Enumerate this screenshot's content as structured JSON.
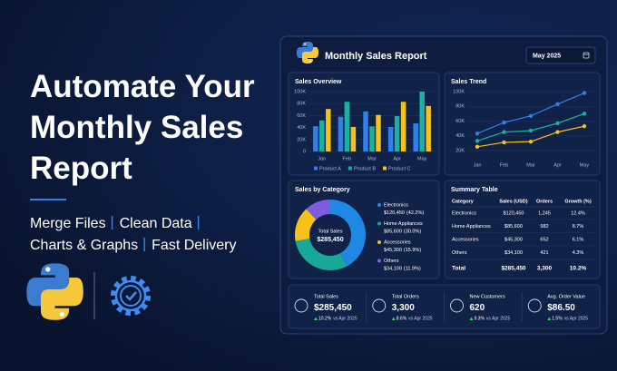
{
  "headline": {
    "lines": [
      "Automate Your",
      "Monthly Sales",
      "Report"
    ]
  },
  "features": [
    "Merge Files",
    "Clean Data",
    "Charts & Graphs",
    "Fast Delivery"
  ],
  "dashboard": {
    "title": "Monthly Sales Report",
    "period": "May 2025",
    "sales_overview": {
      "type": "bar",
      "title": "Sales Overview",
      "categories": [
        "Jan",
        "Feb",
        "Mar",
        "Apr",
        "May"
      ],
      "series": [
        {
          "name": "Product A",
          "color": "#2f80ed",
          "values": [
            42000,
            58000,
            67000,
            41000,
            47000
          ]
        },
        {
          "name": "Product B",
          "color": "#17b3a0",
          "values": [
            52000,
            83000,
            42000,
            59000,
            100000
          ]
        },
        {
          "name": "Product C",
          "color": "#f5c21b",
          "values": [
            71000,
            41000,
            61000,
            83000,
            76000
          ]
        }
      ],
      "ylim": [
        0,
        100000
      ],
      "yticks": [
        0,
        {
          "value": 20000,
          "label": "20K"
        },
        {
          "value": 40000,
          "label": "40K"
        },
        {
          "value": 60000,
          "label": "60K"
        },
        {
          "value": 80000,
          "label": "80K"
        },
        {
          "value": 100000,
          "label": "100K"
        }
      ],
      "grid": true
    },
    "sales_trend": {
      "type": "line",
      "title": "Sales Trend",
      "categories": [
        "Jan",
        "Feb",
        "Mar",
        "Apr",
        "May"
      ],
      "series": [
        {
          "name": "Product A",
          "color": "#2f80ed",
          "values": [
            43000,
            58000,
            67000,
            83000,
            98000
          ]
        },
        {
          "name": "Product B",
          "color": "#17b3a0",
          "values": [
            33000,
            45000,
            47000,
            57000,
            70000
          ]
        },
        {
          "name": "Product C",
          "color": "#f5c21b",
          "values": [
            25000,
            31000,
            32000,
            45000,
            53000
          ]
        }
      ],
      "ylim": [
        10000,
        100000
      ],
      "yticks": [
        {
          "value": 20000,
          "label": "20K"
        },
        {
          "value": 40000,
          "label": "40K"
        },
        {
          "value": 60000,
          "label": "60K"
        },
        {
          "value": 80000,
          "label": "80K"
        },
        {
          "value": 100000,
          "label": "100K"
        }
      ],
      "grid": true
    },
    "sales_by_category": {
      "type": "pie",
      "title": "Sales by Category",
      "center_label": "Total Sales",
      "center_value": "$285,450",
      "categories": [
        "Electronics",
        "Home Appliances",
        "Accessories",
        "Others"
      ],
      "amounts": [
        "$120,450",
        "$85,600",
        "$45,300",
        "$34,100"
      ],
      "values": [
        42.2,
        30.0,
        15.9,
        11.9
      ],
      "value_labels": [
        "(42.2%)",
        "(30.0%)",
        "(15.9%)",
        "(11.9%)"
      ],
      "colors": [
        "#1e88e5",
        "#17a89a",
        "#f4c21b",
        "#7c5ce0"
      ]
    },
    "summary_table": {
      "title": "Summary Table",
      "header": [
        "Category",
        "Sales (USD)",
        "Orders",
        "Growth (%)"
      ],
      "rows": [
        [
          "Electronics",
          "$120,450",
          "1,245",
          "12.4%"
        ],
        [
          "Home Appliances",
          "$85,600",
          "982",
          "8.7%"
        ],
        [
          "Accessories",
          "$45,300",
          "652",
          "6.1%"
        ],
        [
          "Others",
          "$34,100",
          "421",
          "4.3%"
        ]
      ],
      "total": [
        "Total",
        "$285,450",
        "3,300",
        "10.2%"
      ]
    },
    "kpis": [
      {
        "label": "Total Sales",
        "value": "$285,450",
        "change": "10.2%",
        "comparison": "vs Apr 2025"
      },
      {
        "label": "Total Orders",
        "value": "3,300",
        "change": "8.6%",
        "comparison": "vs Apr 2025"
      },
      {
        "label": "New Customers",
        "value": "620",
        "change": "9.3%",
        "comparison": "vs Apr 2025"
      },
      {
        "label": "Avg. Order Value",
        "value": "$86.50",
        "change": "1.5%",
        "comparison": "vs Apr 2025"
      }
    ]
  }
}
